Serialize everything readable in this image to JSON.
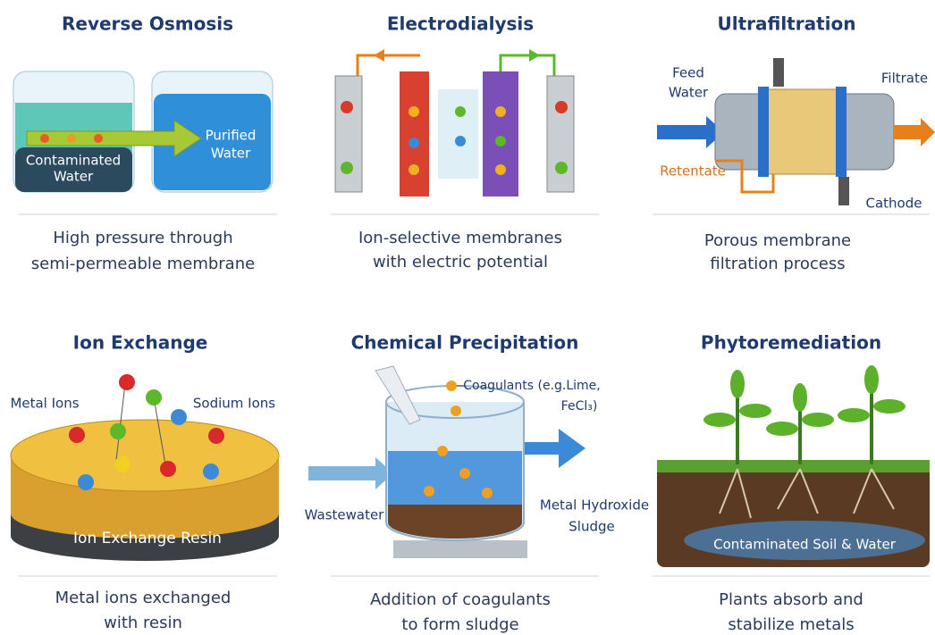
{
  "panels": [
    {
      "title": "Reverse Osmosis",
      "labels": [
        [
          "Contaminated",
          "Water"
        ],
        [
          "Purified",
          "Water"
        ]
      ],
      "description": [
        "High pressure through",
        "semi-permeable membrane"
      ]
    },
    {
      "title": "Electrodialysis",
      "description": [
        "Ion-selective membranes",
        "with electric potential"
      ]
    },
    {
      "title": "Ultrafiltration",
      "labels": [
        [
          "Feed",
          "Water"
        ],
        [
          "Filtrate"
        ],
        [
          "Retentate"
        ],
        [
          "Cathode"
        ]
      ],
      "description": [
        "Porous membrane",
        "filtration process"
      ]
    },
    {
      "title": "Ion Exchange",
      "labels": [
        [
          "Metal Ions"
        ],
        [
          "Sodium Ions"
        ],
        [
          "Ion Exchange Resin"
        ]
      ],
      "description": [
        "Metal ions exchanged",
        "with resin"
      ]
    },
    {
      "title": "Chemical Precipitation",
      "labels": [
        [
          "Coagulants (e.g.Lime,",
          "FeCl₃)"
        ],
        [
          "Wastewater"
        ],
        [
          "Metal Hydroxide",
          "Sludge"
        ]
      ],
      "description": [
        "Addition of coagulants",
        "to form sludge"
      ]
    },
    {
      "title": "Phytoremediation",
      "labels": [
        [
          "Contaminated Soil & Water"
        ]
      ],
      "description": [
        "Plants absorb and",
        "stabilize metals"
      ]
    }
  ]
}
